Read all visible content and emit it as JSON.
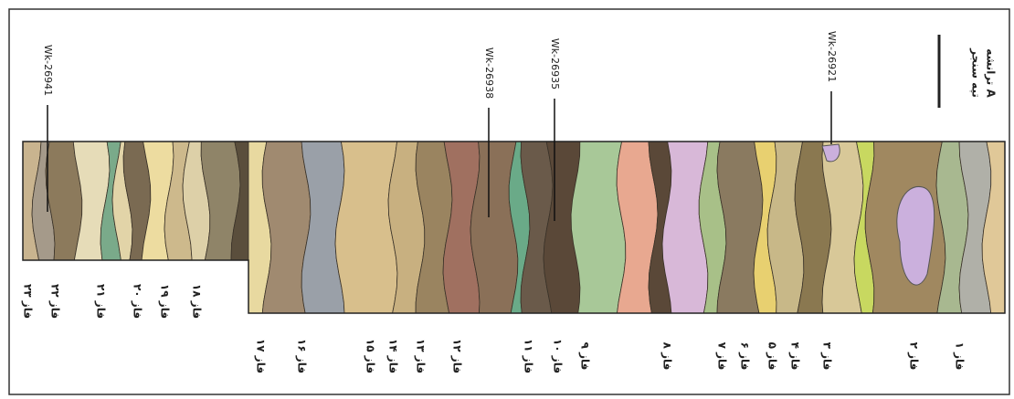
{
  "header": {
    "site": "تپه سنجر",
    "trench": "ترانشه A"
  },
  "samples": [
    "Wk-26941",
    "Wk-26938",
    "Wk-26935",
    "Wk-26921"
  ],
  "phases": [
    "فاز ۱",
    "فاز ۲",
    "فاز ۳",
    "فاز ۴",
    "فاز ۵",
    "فاز ۶",
    "فاز ۷",
    "فاز ۸",
    "فاز ۹",
    "فاز ۱۰",
    "فاز ۱۱",
    "فاز ۱۲",
    "فاز ۱۳",
    "فاز ۱۴",
    "فاز ۱۵",
    "فاز ۱۶",
    "فاز ۱۷",
    "فاز ۱۸",
    "فاز ۱۹",
    "فاز ۲۰",
    "فاز ۲۱",
    "فاز ۲۲",
    "فاز ۲۳"
  ]
}
